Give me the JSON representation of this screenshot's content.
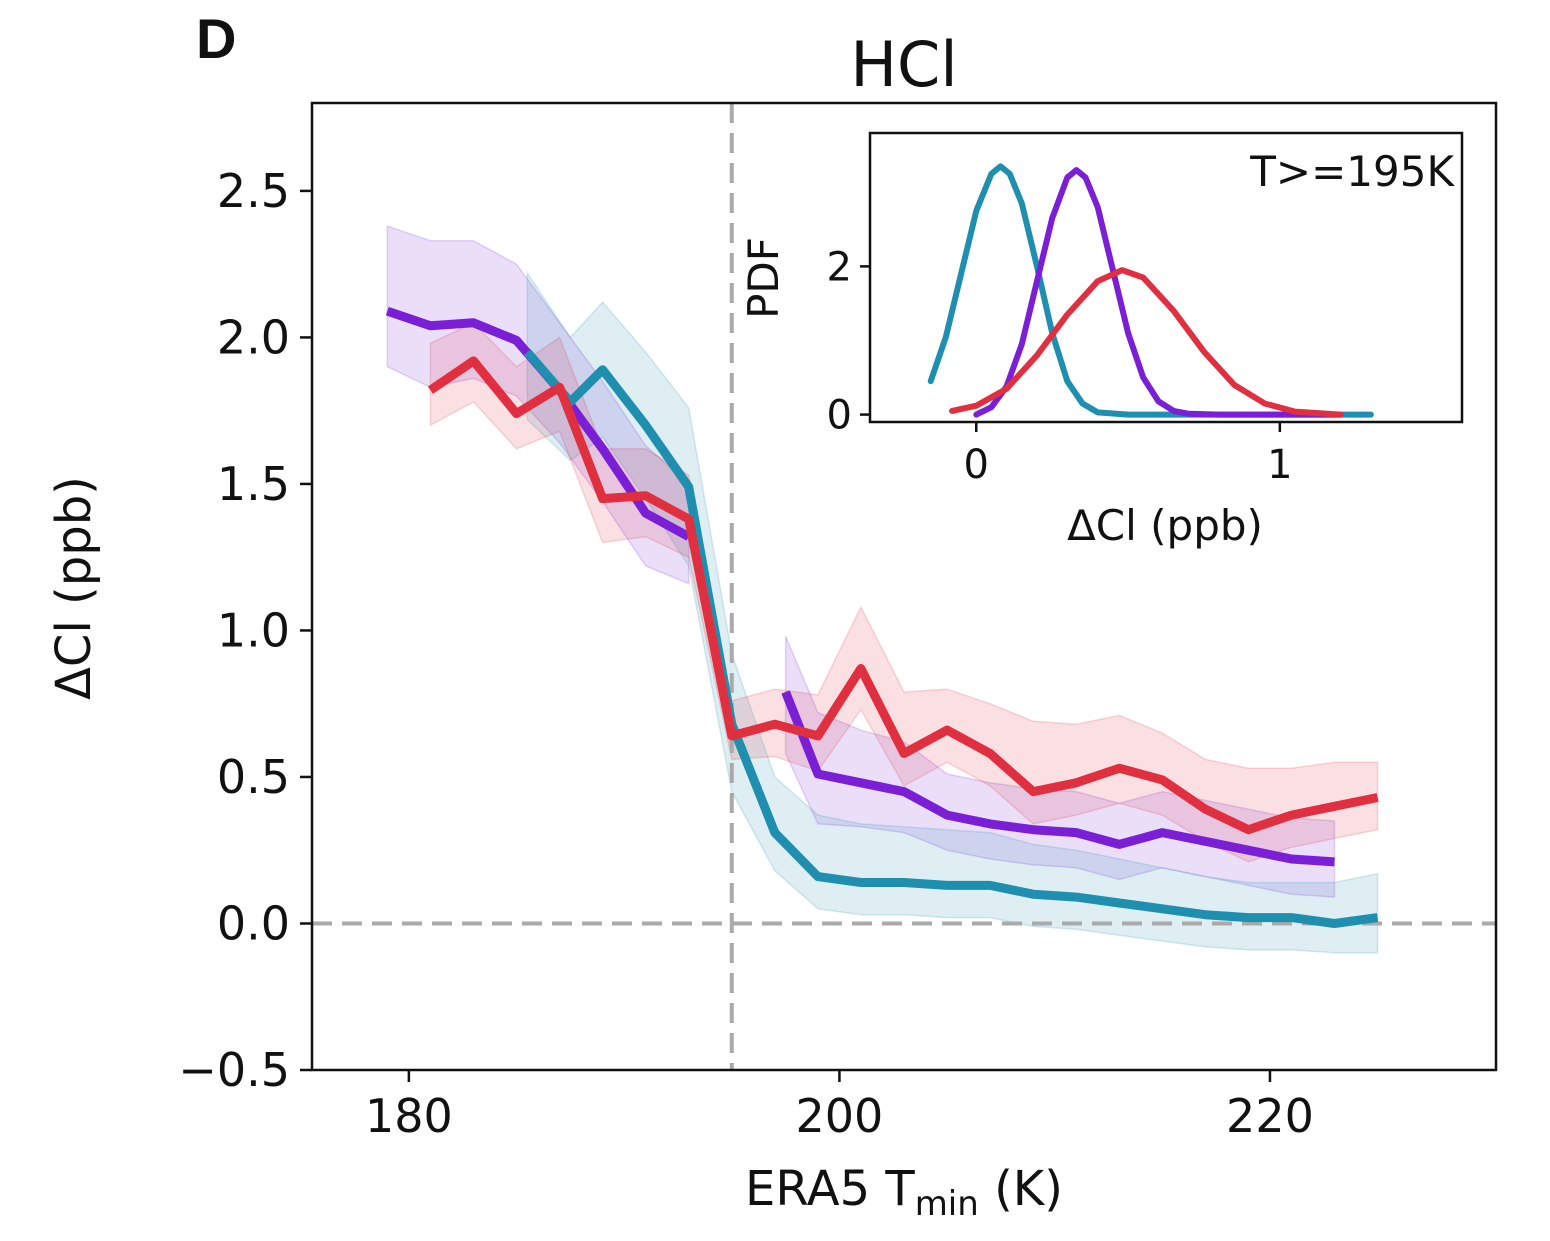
{
  "panel_label": "D",
  "colors": {
    "cyan": "#1f8fb0",
    "purple": "#7a1fd6",
    "red": "#e03040",
    "reference": "#aaaaaa"
  },
  "chart_data": [
    {
      "type": "line",
      "title": "HCl",
      "xlabel_main": "ERA5 T",
      "xlabel_sub": "min",
      "xlabel_unit": " (K)",
      "ylabel": "ΔCl (ppb)",
      "xlim": [
        175.5,
        230.5
      ],
      "ylim": [
        -0.5,
        2.8
      ],
      "xticks": [
        180,
        200,
        220
      ],
      "xtick_labels": [
        "180",
        "200",
        "220"
      ],
      "yticks": [
        -0.5,
        0.0,
        0.5,
        1.0,
        1.5,
        2.0,
        2.5
      ],
      "ytick_labels": [
        "−0.5",
        "0.0",
        "0.5",
        "1.0",
        "1.5",
        "2.0",
        "2.5"
      ],
      "reference_lines": {
        "x": 195,
        "y": 0.0
      },
      "series": [
        {
          "name": "purple",
          "color": "#7a1fd6",
          "segments": [
            {
              "x": [
                179,
                181,
                183,
                185,
                187,
                189,
                191,
                193
              ],
              "y": [
                2.09,
                2.04,
                2.05,
                1.99,
                1.82,
                1.62,
                1.4,
                1.32
              ],
              "lower": [
                1.9,
                1.83,
                1.86,
                1.8,
                1.64,
                1.44,
                1.22,
                1.16
              ],
              "upper": [
                2.38,
                2.33,
                2.33,
                2.25,
                2.05,
                1.85,
                1.63,
                1.5
              ]
            },
            {
              "x": [
                197.5,
                199,
                201,
                203,
                205,
                207,
                209,
                211,
                213,
                215,
                217,
                219,
                221,
                223
              ],
              "y": [
                0.79,
                0.51,
                0.48,
                0.45,
                0.37,
                0.34,
                0.32,
                0.31,
                0.27,
                0.31,
                0.28,
                0.25,
                0.22,
                0.21
              ],
              "lower": [
                0.58,
                0.34,
                0.33,
                0.31,
                0.25,
                0.22,
                0.2,
                0.19,
                0.15,
                0.19,
                0.16,
                0.13,
                0.1,
                0.09
              ],
              "upper": [
                0.98,
                0.72,
                0.66,
                0.62,
                0.51,
                0.48,
                0.46,
                0.45,
                0.41,
                0.45,
                0.42,
                0.39,
                0.36,
                0.35
              ]
            }
          ]
        },
        {
          "name": "cyan",
          "color": "#1f8fb0",
          "segments": [
            {
              "x": [
                185.5,
                187.5,
                189,
                191,
                193,
                195,
                197,
                199,
                201,
                203,
                205,
                207,
                209,
                211,
                213,
                215,
                217,
                219,
                221,
                223,
                225
              ],
              "y": [
                1.95,
                1.78,
                1.89,
                1.7,
                1.49,
                0.68,
                0.31,
                0.16,
                0.14,
                0.14,
                0.13,
                0.13,
                0.1,
                0.09,
                0.07,
                0.05,
                0.03,
                0.02,
                0.02,
                0.0,
                0.02
              ],
              "lower": [
                1.72,
                1.58,
                1.66,
                1.45,
                1.22,
                0.45,
                0.18,
                0.05,
                0.03,
                0.03,
                0.02,
                0.02,
                -0.01,
                -0.02,
                -0.04,
                -0.06,
                -0.08,
                -0.09,
                -0.09,
                -0.1,
                -0.1
              ],
              "upper": [
                2.22,
                2.0,
                2.12,
                1.95,
                1.76,
                0.92,
                0.5,
                0.37,
                0.34,
                0.33,
                0.32,
                0.31,
                0.27,
                0.25,
                0.22,
                0.19,
                0.16,
                0.14,
                0.14,
                0.14,
                0.17
              ]
            }
          ]
        },
        {
          "name": "red",
          "color": "#e03040",
          "segments": [
            {
              "x": [
                181,
                183,
                185,
                187,
                189,
                191,
                193,
                195,
                197,
                199,
                201,
                203,
                205,
                207,
                209,
                211,
                213,
                215,
                217,
                219,
                221,
                223,
                225
              ],
              "y": [
                1.82,
                1.92,
                1.74,
                1.83,
                1.45,
                1.46,
                1.38,
                0.64,
                0.68,
                0.64,
                0.87,
                0.58,
                0.66,
                0.58,
                0.45,
                0.48,
                0.53,
                0.49,
                0.39,
                0.32,
                0.37,
                0.4,
                0.43
              ],
              "lower": [
                1.7,
                1.78,
                1.62,
                1.68,
                1.3,
                1.32,
                1.25,
                0.56,
                0.57,
                0.52,
                0.73,
                0.47,
                0.55,
                0.47,
                0.34,
                0.37,
                0.41,
                0.37,
                0.28,
                0.21,
                0.26,
                0.29,
                0.32
              ],
              "upper": [
                1.98,
                2.05,
                1.9,
                2.0,
                1.62,
                1.62,
                1.53,
                0.76,
                0.8,
                0.78,
                1.08,
                0.79,
                0.8,
                0.75,
                0.69,
                0.68,
                0.71,
                0.65,
                0.56,
                0.53,
                0.53,
                0.55,
                0.55
              ]
            }
          ]
        }
      ]
    },
    {
      "type": "line",
      "role": "inset",
      "annotation": "T>=195K",
      "xlabel": "ΔCl (ppb)",
      "ylabel": "PDF",
      "xlim": [
        -0.35,
        1.6
      ],
      "ylim": [
        -0.1,
        3.8
      ],
      "xticks": [
        0,
        1
      ],
      "xtick_labels": [
        "0",
        "1"
      ],
      "yticks": [
        0,
        2
      ],
      "ytick_labels": [
        "0",
        "2"
      ],
      "series": [
        {
          "name": "cyan",
          "color": "#1f8fb0",
          "x": [
            -0.15,
            -0.1,
            -0.05,
            0.0,
            0.05,
            0.08,
            0.11,
            0.15,
            0.2,
            0.25,
            0.3,
            0.35,
            0.4,
            0.5,
            0.7,
            1.0,
            1.3
          ],
          "y": [
            0.45,
            1.05,
            1.9,
            2.75,
            3.25,
            3.35,
            3.25,
            2.85,
            2.0,
            1.1,
            0.45,
            0.15,
            0.03,
            0.0,
            0.0,
            0.0,
            0.0
          ]
        },
        {
          "name": "purple",
          "color": "#7a1fd6",
          "x": [
            0.0,
            0.05,
            0.1,
            0.15,
            0.2,
            0.25,
            0.3,
            0.33,
            0.36,
            0.4,
            0.45,
            0.5,
            0.55,
            0.6,
            0.65,
            0.7,
            0.8,
            1.0,
            1.2
          ],
          "y": [
            0.0,
            0.1,
            0.38,
            0.95,
            1.8,
            2.65,
            3.2,
            3.3,
            3.2,
            2.8,
            1.95,
            1.1,
            0.5,
            0.18,
            0.05,
            0.01,
            0.0,
            0.0,
            0.0
          ]
        },
        {
          "name": "red",
          "color": "#e03040",
          "x": [
            -0.08,
            0.0,
            0.1,
            0.2,
            0.3,
            0.4,
            0.48,
            0.55,
            0.65,
            0.75,
            0.85,
            0.95,
            1.05,
            1.2
          ],
          "y": [
            0.05,
            0.12,
            0.35,
            0.8,
            1.35,
            1.8,
            1.95,
            1.85,
            1.4,
            0.85,
            0.4,
            0.15,
            0.04,
            0.0
          ]
        }
      ]
    }
  ]
}
